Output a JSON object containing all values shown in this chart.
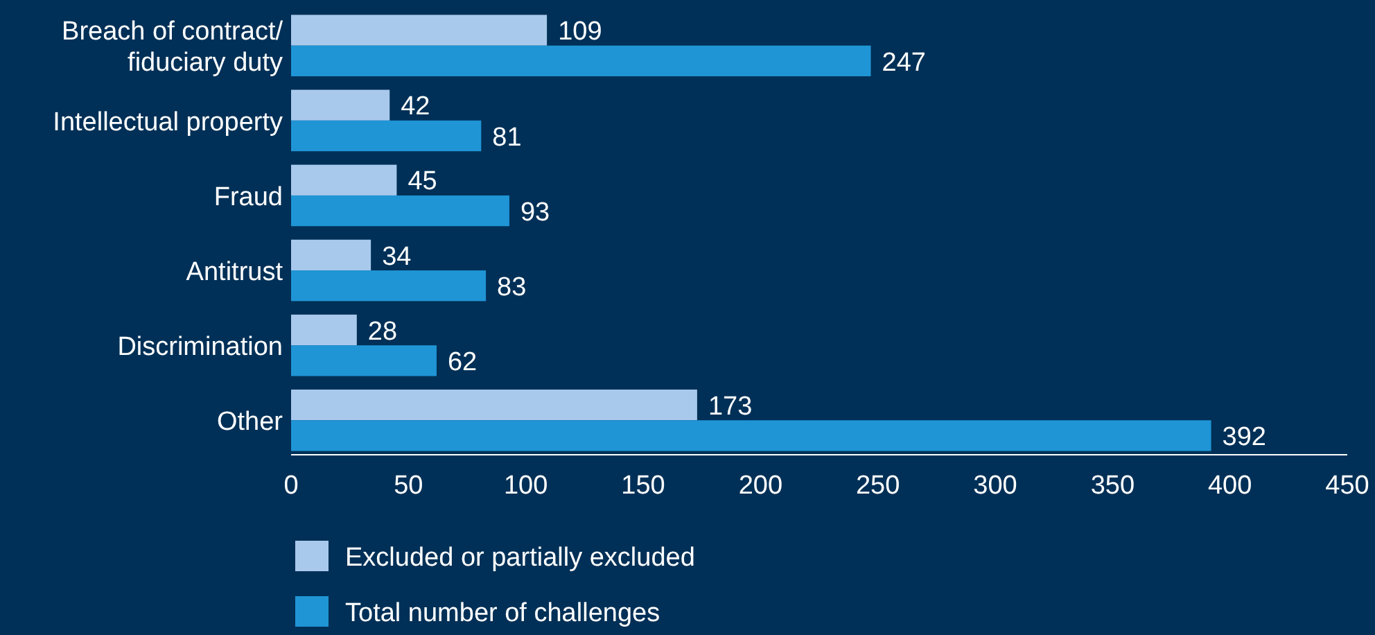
{
  "chart_data": {
    "type": "bar",
    "orientation": "horizontal",
    "categories": [
      "Breach of contract/\nfiduciary duty",
      "Intellectual property",
      "Fraud",
      "Antitrust",
      "Discrimination",
      "Other"
    ],
    "series": [
      {
        "name": "Excluded or partially excluded",
        "color": "#a9c9ec",
        "values": [
          109,
          42,
          45,
          34,
          28,
          173
        ]
      },
      {
        "name": "Total number of challenges",
        "color": "#1f95d6",
        "values": [
          247,
          81,
          93,
          83,
          62,
          392
        ]
      }
    ],
    "xlim": [
      0,
      450
    ],
    "xticks": [
      0,
      50,
      100,
      150,
      200,
      250,
      300,
      350,
      400,
      450
    ],
    "data_labels": true,
    "legend": "bottom",
    "grid": false
  }
}
